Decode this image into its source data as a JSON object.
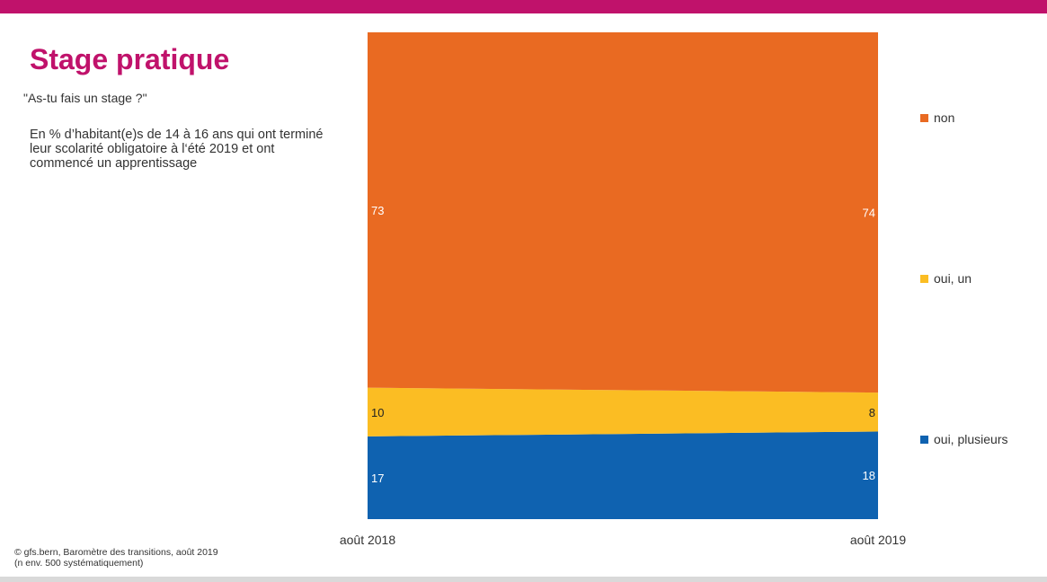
{
  "header": {
    "title": "Stage pratique"
  },
  "question": "\"As-tu fais un stage ?\"",
  "description": "En % d’habitant(e)s de 14 à 16 ans qui ont terminé leur scolarité obligatoire à l‘été 2019 et ont commencé un apprentissage",
  "source": {
    "line1": "©  gfs.bern, Baromètre des transitions, août 2019",
    "line2": "(n env. 500 systématiquement)"
  },
  "colors": {
    "brand": "#c0126b",
    "non": "#e96a22",
    "oui_un": "#fbbd23",
    "oui_plusieurs": "#0f62b0"
  },
  "legend": [
    {
      "label": "non",
      "color": "#e96a22"
    },
    {
      "label": "oui, un",
      "color": "#fbbd23"
    },
    {
      "label": "oui, plusieurs",
      "color": "#0f62b0"
    }
  ],
  "chart_data": {
    "type": "area",
    "stacked": true,
    "x": [
      "août 2018",
      "août 2019"
    ],
    "series": [
      {
        "name": "oui, plusieurs",
        "values": [
          17,
          18
        ],
        "color": "#0f62b0"
      },
      {
        "name": "oui, un",
        "values": [
          10,
          8
        ],
        "color": "#fbbd23"
      },
      {
        "name": "non",
        "values": [
          73,
          74
        ],
        "color": "#e96a22"
      }
    ],
    "ylim": [
      0,
      100
    ],
    "grid": false,
    "legend_position": "right"
  }
}
